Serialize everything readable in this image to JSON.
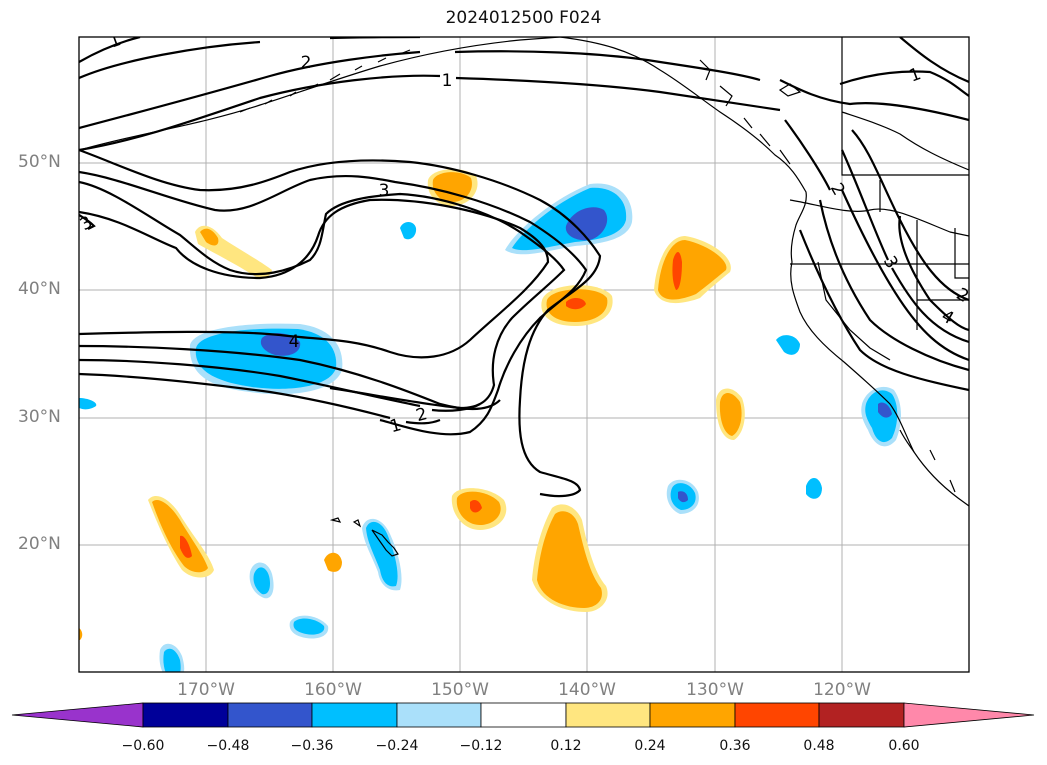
{
  "title": "2024012500 F024",
  "map": {
    "lat_labels": [
      "50°N",
      "40°N",
      "30°N",
      "20°N"
    ],
    "lon_labels": [
      "170°W",
      "160°W",
      "150°W",
      "140°W",
      "130°W",
      "120°W"
    ],
    "contour_labels": [
      "2",
      "1",
      "1",
      "3",
      "4",
      "2",
      "1",
      "2",
      "3",
      "1",
      "3",
      "4",
      "2"
    ]
  },
  "colorbar": {
    "ticks": [
      "−0.60",
      "−0.48",
      "−0.36",
      "−0.24",
      "−0.12",
      "0.12",
      "0.24",
      "0.36",
      "0.48",
      "0.60"
    ],
    "colors": [
      "#9933cc",
      "#000099",
      "#3355cc",
      "#00bfff",
      "#aae0fa",
      "#ffffff",
      "#ffe680",
      "#ffa500",
      "#ff4500",
      "#b22222",
      "#ff88aa"
    ]
  }
}
